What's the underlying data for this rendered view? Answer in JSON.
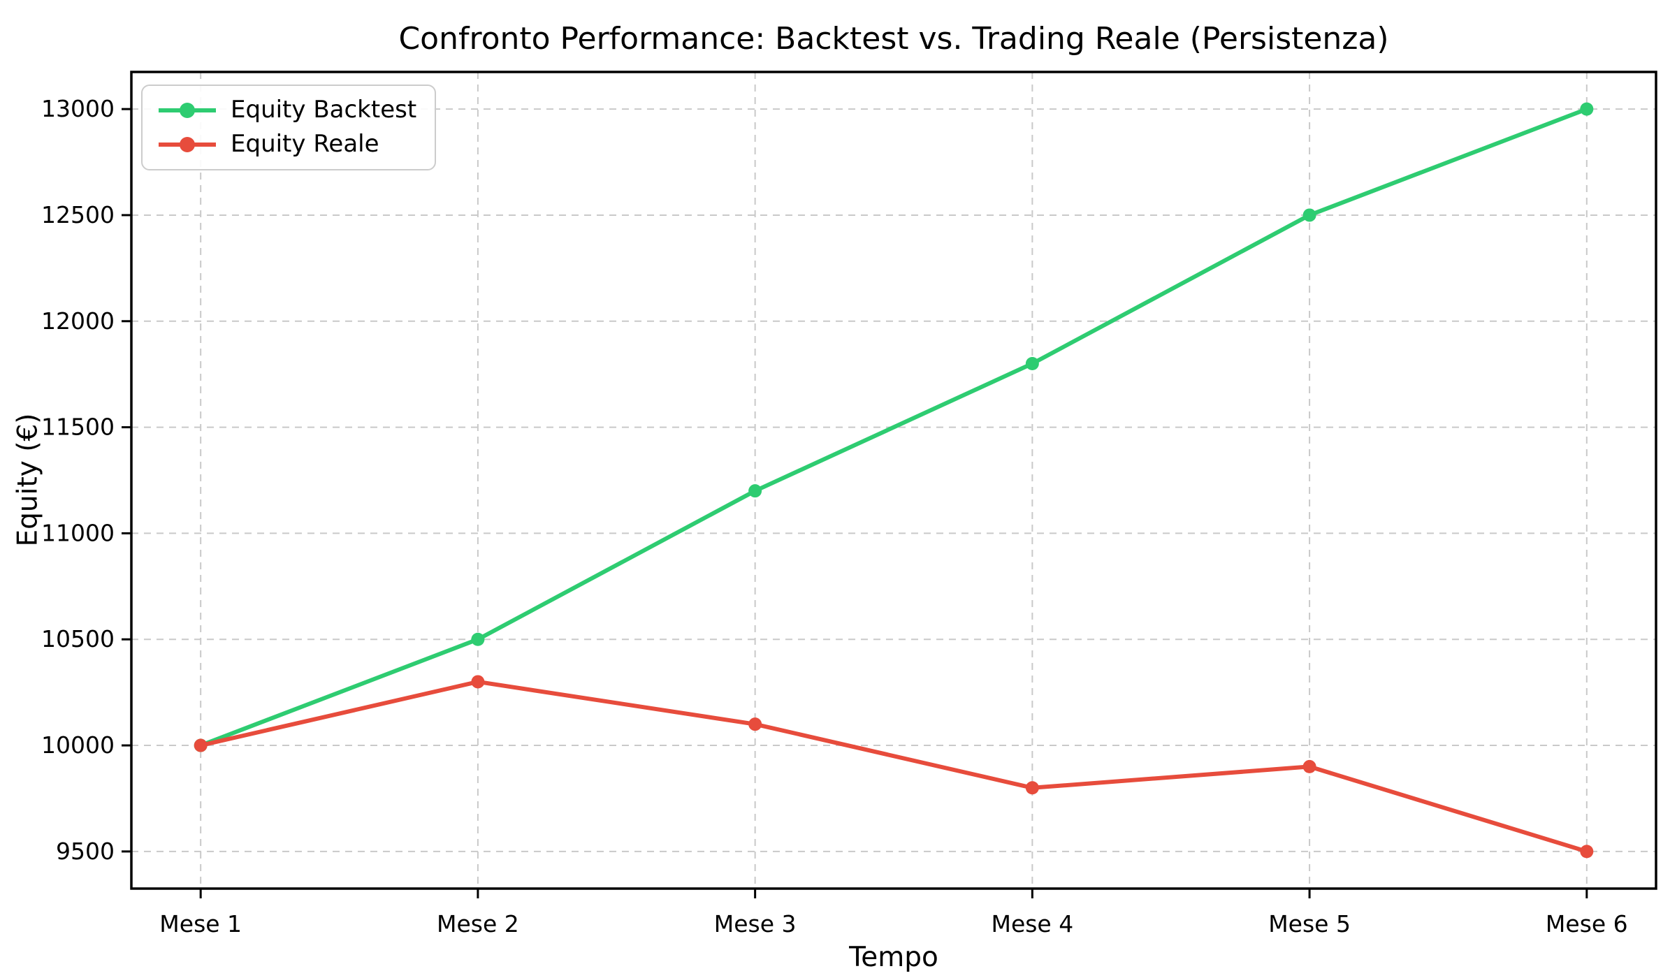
{
  "chart_data": {
    "type": "line",
    "title": "Confronto Performance: Backtest vs. Trading Reale (Persistenza)",
    "xlabel": "Tempo",
    "ylabel": "Equity (€)",
    "categories": [
      "Mese 1",
      "Mese 2",
      "Mese 3",
      "Mese 4",
      "Mese 5",
      "Mese 6"
    ],
    "series": [
      {
        "name": "Equity Backtest",
        "color": "#2ecc71",
        "values": [
          10000,
          10500,
          11200,
          11800,
          12500,
          13000
        ]
      },
      {
        "name": "Equity Reale",
        "color": "#e74c3c",
        "values": [
          10000,
          10300,
          10100,
          9800,
          9900,
          9500
        ]
      }
    ],
    "yticks": [
      9500,
      10000,
      10500,
      11000,
      11500,
      12000,
      12500,
      13000
    ],
    "ylim": [
      9325,
      13175
    ],
    "xlim": [
      -0.25,
      5.25
    ],
    "grid": true,
    "grid_style": "dashed",
    "legend_position": "upper left",
    "marker": "circle"
  },
  "colors": {
    "grid": "#c9c9c9",
    "spine": "#000000",
    "background": "#ffffff",
    "legend_border": "#cccccc",
    "text": "#000000"
  }
}
